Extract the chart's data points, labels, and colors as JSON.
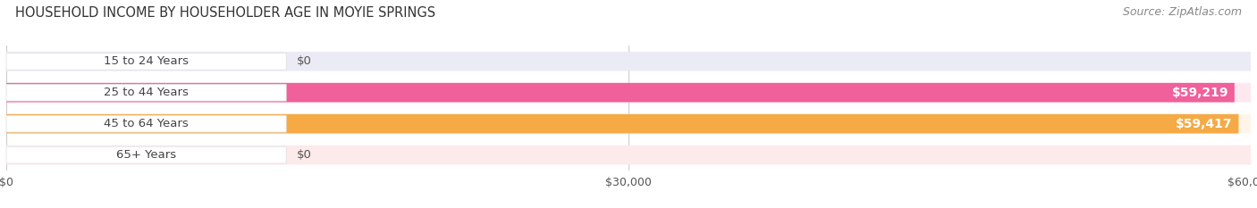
{
  "title": "HOUSEHOLD INCOME BY HOUSEHOLDER AGE IN MOYIE SPRINGS",
  "source": "Source: ZipAtlas.com",
  "categories": [
    "15 to 24 Years",
    "25 to 44 Years",
    "45 to 64 Years",
    "65+ Years"
  ],
  "values": [
    0,
    59219,
    59417,
    0
  ],
  "bar_colors": [
    "#b0b0e0",
    "#f0609a",
    "#f5aa45",
    "#f5a0a0"
  ],
  "bar_bg_colors": [
    "#ebebf5",
    "#fde8f0",
    "#fef5e8",
    "#fdeaea"
  ],
  "xlim": [
    0,
    60000
  ],
  "xticks": [
    0,
    30000,
    60000
  ],
  "xticklabels": [
    "$0",
    "$30,000",
    "$60,000"
  ],
  "background_color": "#ffffff",
  "title_fontsize": 10.5,
  "tick_fontsize": 9,
  "label_fontsize": 9.5,
  "source_fontsize": 9
}
